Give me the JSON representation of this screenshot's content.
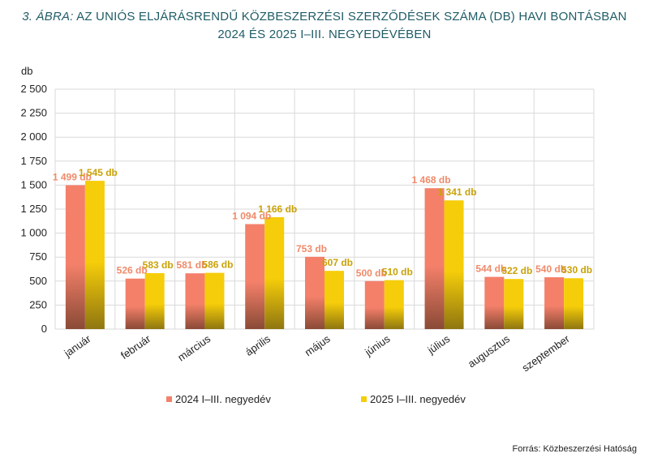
{
  "title": {
    "label": "3. ÁBRA:",
    "line1": "AZ UNIÓS ELJÁRÁSRENDŰ KÖZBESZERZÉSI SZERZŐDÉSEK SZÁMA (DB) HAVI BONTÁSBAN",
    "line2": "2024 ÉS 2025 I–III. NEGYEDÉVÉBEN"
  },
  "source": "Forrás: Közbeszerzési Hatóság",
  "colors": {
    "series2024_top": "#f4806a",
    "series2024_bottom": "#8a4a36",
    "series2025_top": "#f5cd0a",
    "series2025_bottom": "#8f7610",
    "grid": "#d9d9d9"
  },
  "chart_data": {
    "type": "bar",
    "ylabel": "db",
    "ylim": [
      0,
      2500
    ],
    "ytick_labels": [
      "0",
      "250",
      "500",
      "750",
      "1 000",
      "1 250",
      "1 500",
      "1 750",
      "2 000",
      "2 250",
      "2 500"
    ],
    "grid": true,
    "legend_position": "bottom",
    "categories": [
      "január",
      "február",
      "március",
      "április",
      "május",
      "június",
      "július",
      "augusztus",
      "szeptember"
    ],
    "series": [
      {
        "name": "2024 I–III. negyedév",
        "values": [
          1499,
          526,
          581,
          1094,
          753,
          500,
          1468,
          544,
          540
        ],
        "labels": [
          "1 499 db",
          "526 db",
          "581 db",
          "1 094 db",
          "753 db",
          "500 db",
          "1 468 db",
          "544 db",
          "540 db"
        ]
      },
      {
        "name": "2025 I–III. negyedév",
        "values": [
          1545,
          583,
          586,
          1166,
          607,
          510,
          1341,
          522,
          530
        ],
        "labels": [
          "1 545 db",
          "583 db",
          "586 db",
          "1 166 db",
          "607 db",
          "510 db",
          "1 341 db",
          "522 db",
          "530 db"
        ]
      }
    ]
  }
}
